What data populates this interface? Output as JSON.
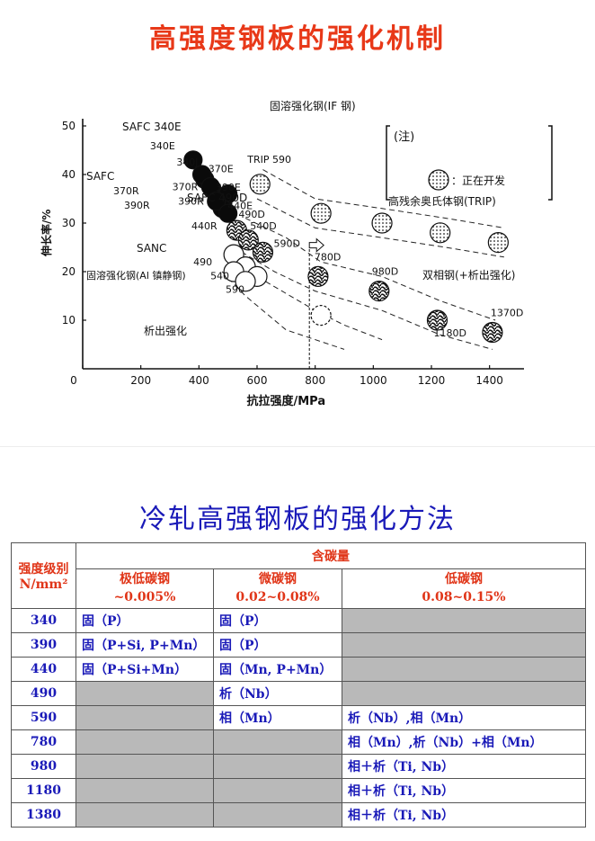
{
  "titles": {
    "top": "高强度钢板的强化机制",
    "bottom": "冷轧高强钢板的强化方法"
  },
  "chart_data": {
    "type": "scatter",
    "xlabel": "抗拉强度/MPa",
    "ylabel": "伸长率/%",
    "xlim": [
      0,
      1500
    ],
    "ylim": [
      0,
      50
    ],
    "x_ticks": [
      "0",
      "200",
      "400",
      "600",
      "800",
      "1000",
      "1200",
      "1400"
    ],
    "y_ticks": [
      "10",
      "20",
      "30",
      "40",
      "50"
    ],
    "legend_note": "(注)",
    "legend_text": "：正在开发",
    "vertical_line_x": 780,
    "groups": [
      {
        "name": "固溶强化钢(IF 钢)",
        "style": "black",
        "points": [
          {
            "label": "340E",
            "x": 380,
            "y": 43
          },
          {
            "label": "370E",
            "x": 420,
            "y": 39
          },
          {
            "label": "390E",
            "x": 445,
            "y": 37
          },
          {
            "label": "440E",
            "x": 480,
            "y": 34
          },
          {
            "label": "",
            "x": 500,
            "y": 36
          },
          {
            "label": "",
            "x": 480,
            "y": 33
          }
        ]
      },
      {
        "name": "固溶强化钢(Al 镇静钢)",
        "style": "black",
        "points": [
          {
            "label": "340J",
            "x": 410,
            "y": 40
          },
          {
            "label": "370R",
            "x": 440,
            "y": 37.5
          },
          {
            "label": "390R",
            "x": 460,
            "y": 34.5
          },
          {
            "label": "440R",
            "x": 500,
            "y": 32
          }
        ]
      },
      {
        "name": "析出强化",
        "style": "white",
        "points": [
          {
            "label": "490",
            "x": 520,
            "y": 23.5
          },
          {
            "label": "540",
            "x": 560,
            "y": 21
          },
          {
            "label": "590",
            "x": 600,
            "y": 19
          },
          {
            "label": "",
            "x": 520,
            "y": 20
          },
          {
            "label": "",
            "x": 560,
            "y": 18
          }
        ]
      },
      {
        "name": "双相钢(+析出强化)",
        "style": "marbled",
        "points": [
          {
            "label": "490D",
            "x": 530,
            "y": 28.5
          },
          {
            "label": "540D",
            "x": 570,
            "y": 26.5
          },
          {
            "label": "590D",
            "x": 620,
            "y": 24
          },
          {
            "label": "780D",
            "x": 810,
            "y": 19
          },
          {
            "label": "980D",
            "x": 1020,
            "y": 16
          },
          {
            "label": "1180D",
            "x": 1220,
            "y": 10
          },
          {
            "label": "1370D",
            "x": 1410,
            "y": 7.5
          }
        ]
      },
      {
        "name": "高残余奥氏体钢(TRIP)",
        "style": "dotted",
        "points": [
          {
            "label": "TRIP 590",
            "x": 610,
            "y": 38
          },
          {
            "label": "",
            "x": 820,
            "y": 32
          },
          {
            "label": "",
            "x": 1030,
            "y": 30
          },
          {
            "label": "",
            "x": 1230,
            "y": 28
          },
          {
            "label": "",
            "x": 1430,
            "y": 26
          }
        ]
      },
      {
        "name": "",
        "style": "dashed",
        "points": [
          {
            "label": "",
            "x": 820,
            "y": 11
          }
        ]
      }
    ],
    "annotations": [
      "SAFC 340E",
      "SAFC 490D",
      "SANC",
      "SAFC",
      "370R",
      "390R"
    ]
  },
  "table": {
    "header_grade": "强度级别",
    "header_grade_unit": "N/mm²",
    "header_carbon": "含碳量",
    "columns": [
      {
        "name": "极低碳钢",
        "range": "~0.005%"
      },
      {
        "name": "微碳钢",
        "range": "0.02~0.08%"
      },
      {
        "name": "低碳钢",
        "range": "0.08~0.15%"
      }
    ],
    "rows": [
      {
        "grade": "340",
        "cells": [
          "固（P）",
          "固（P）",
          ""
        ]
      },
      {
        "grade": "390",
        "cells": [
          "固（P+Si, P+Mn）",
          "固（P）",
          ""
        ]
      },
      {
        "grade": "440",
        "cells": [
          "固（P+Si+Mn）",
          "固（Mn, P+Mn）",
          ""
        ]
      },
      {
        "grade": "490",
        "cells": [
          "",
          "析（Nb）",
          ""
        ]
      },
      {
        "grade": "590",
        "cells": [
          "",
          "相（Mn）",
          "析（Nb）,相（Mn）"
        ]
      },
      {
        "grade": "780",
        "cells": [
          "",
          "",
          "相（Mn）,析（Nb）+相（Mn）"
        ]
      },
      {
        "grade": "980",
        "cells": [
          "",
          "",
          "相＋析（Ti, Nb）"
        ]
      },
      {
        "grade": "1180",
        "cells": [
          "",
          "",
          "相＋析（Ti, Nb）"
        ]
      },
      {
        "grade": "1380",
        "cells": [
          "",
          "",
          "相＋析（Ti, Nb）"
        ]
      }
    ]
  }
}
